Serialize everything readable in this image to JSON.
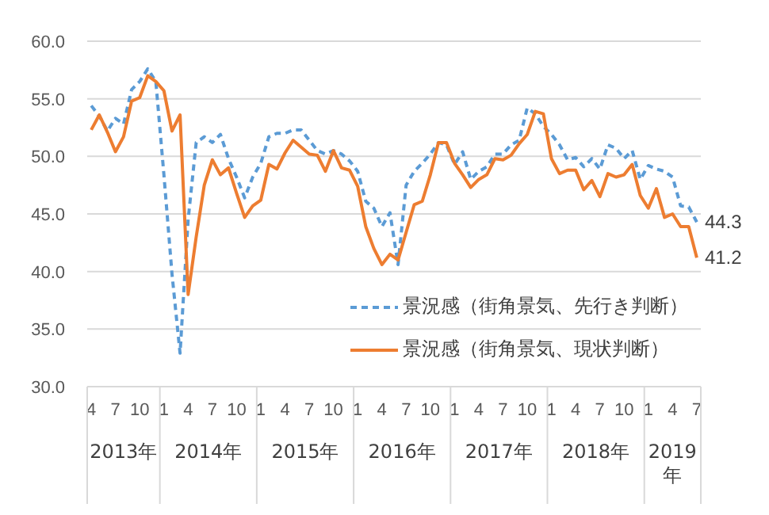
{
  "chart_data": {
    "type": "line",
    "x": [
      "2013-04",
      "2013-05",
      "2013-06",
      "2013-07",
      "2013-08",
      "2013-09",
      "2013-10",
      "2013-11",
      "2013-12",
      "2014-01",
      "2014-02",
      "2014-03",
      "2014-04",
      "2014-05",
      "2014-06",
      "2014-07",
      "2014-08",
      "2014-09",
      "2014-10",
      "2014-11",
      "2014-12",
      "2015-01",
      "2015-02",
      "2015-03",
      "2015-04",
      "2015-05",
      "2015-06",
      "2015-07",
      "2015-08",
      "2015-09",
      "2015-10",
      "2015-11",
      "2015-12",
      "2016-01",
      "2016-02",
      "2016-03",
      "2016-04",
      "2016-05",
      "2016-06",
      "2016-07",
      "2016-08",
      "2016-09",
      "2016-10",
      "2016-11",
      "2016-12",
      "2017-01",
      "2017-02",
      "2017-03",
      "2017-04",
      "2017-05",
      "2017-06",
      "2017-07",
      "2017-08",
      "2017-09",
      "2017-10",
      "2017-11",
      "2017-12",
      "2018-01",
      "2018-02",
      "2018-03",
      "2018-04",
      "2018-05",
      "2018-06",
      "2018-07",
      "2018-08",
      "2018-09",
      "2018-10",
      "2018-11",
      "2018-12",
      "2019-01",
      "2019-02",
      "2019-03",
      "2019-04",
      "2019-05",
      "2019-06",
      "2019-07"
    ],
    "series": [
      {
        "name": "景況感（街角景気、先行き判断）",
        "color": "#5b9bd5",
        "line_style": "dashed",
        "values": [
          54.4,
          53.5,
          52.2,
          53.3,
          52.8,
          55.8,
          56.5,
          57.6,
          56.5,
          48.4,
          39.8,
          32.9,
          44.5,
          51.2,
          51.7,
          51.2,
          51.9,
          49.8,
          48.2,
          46.4,
          48.2,
          49.4,
          51.7,
          52.0,
          52.0,
          52.3,
          52.3,
          51.4,
          50.5,
          50.2,
          50.5,
          50.2,
          49.6,
          48.7,
          46.1,
          45.5,
          43.9,
          45.1,
          40.6,
          47.5,
          48.7,
          49.4,
          50.2,
          51.2,
          51.0,
          49.3,
          50.4,
          48.0,
          48.7,
          49.1,
          50.2,
          50.2,
          51.0,
          51.4,
          54.2,
          53.7,
          52.6,
          51.9,
          51.0,
          49.7,
          49.9,
          49.1,
          49.8,
          48.9,
          51.0,
          50.7,
          49.8,
          50.5,
          48.0,
          49.2,
          48.9,
          48.7,
          48.2,
          45.7,
          45.6,
          44.3
        ],
        "value_labels": [
          null,
          null,
          null,
          null,
          null,
          null,
          null,
          null,
          null,
          null,
          null,
          null,
          null,
          null,
          null,
          null,
          null,
          null,
          null,
          null,
          null,
          null,
          null,
          null,
          null,
          null,
          null,
          null,
          null,
          null,
          null,
          null,
          null,
          null,
          null,
          null,
          null,
          null,
          null,
          null,
          null,
          null,
          null,
          null,
          null,
          null,
          null,
          null,
          null,
          null,
          null,
          null,
          null,
          null,
          null,
          null,
          null,
          null,
          null,
          null,
          null,
          null,
          null,
          null,
          null,
          null,
          null,
          null,
          null,
          null,
          null,
          null,
          null,
          null,
          null,
          "44.3"
        ]
      },
      {
        "name": "景況感（街角景気、現状判断）",
        "color": "#ed7d31",
        "line_style": "solid",
        "values": [
          52.3,
          53.6,
          52.1,
          50.4,
          51.7,
          54.8,
          55.1,
          57.0,
          56.5,
          55.7,
          52.2,
          53.6,
          38.0,
          43.0,
          47.5,
          49.7,
          48.4,
          49.0,
          46.8,
          44.7,
          45.7,
          46.2,
          49.3,
          48.9,
          50.3,
          51.4,
          50.8,
          50.2,
          50.1,
          48.7,
          50.5,
          49.0,
          48.8,
          47.4,
          43.9,
          42.0,
          40.6,
          41.5,
          41.0,
          43.4,
          45.8,
          46.1,
          48.4,
          51.2,
          51.2,
          49.4,
          48.4,
          47.3,
          48.0,
          48.4,
          49.8,
          49.7,
          50.1,
          51.1,
          51.9,
          53.9,
          53.7,
          49.8,
          48.5,
          48.8,
          48.8,
          47.1,
          47.9,
          46.5,
          48.5,
          48.2,
          48.4,
          49.3,
          46.6,
          45.5,
          47.2,
          44.7,
          45.0,
          43.9,
          43.9,
          41.2
        ],
        "value_labels": [
          null,
          null,
          null,
          null,
          null,
          null,
          null,
          null,
          null,
          null,
          null,
          null,
          null,
          null,
          null,
          null,
          null,
          null,
          null,
          null,
          null,
          null,
          null,
          null,
          null,
          null,
          null,
          null,
          null,
          null,
          null,
          null,
          null,
          null,
          null,
          null,
          null,
          null,
          null,
          null,
          null,
          null,
          null,
          null,
          null,
          null,
          null,
          null,
          null,
          null,
          null,
          null,
          null,
          null,
          null,
          null,
          null,
          null,
          null,
          null,
          null,
          null,
          null,
          null,
          null,
          null,
          null,
          null,
          null,
          null,
          null,
          null,
          null,
          null,
          null,
          "41.2"
        ]
      }
    ],
    "xlim": [
      "2013-03-16",
      "2019-07-16"
    ],
    "xticks": [
      {
        "value": "2013-04",
        "label": "4"
      },
      {
        "value": "2013-07",
        "label": "7"
      },
      {
        "value": "2013-10",
        "label": "10"
      },
      {
        "value": "2014-01",
        "label": "1"
      },
      {
        "value": "2014-04",
        "label": "4"
      },
      {
        "value": "2014-07",
        "label": "7"
      },
      {
        "value": "2014-10",
        "label": "10"
      },
      {
        "value": "2015-01",
        "label": "1"
      },
      {
        "value": "2015-04",
        "label": "4"
      },
      {
        "value": "2015-07",
        "label": "7"
      },
      {
        "value": "2015-10",
        "label": "10"
      },
      {
        "value": "2016-01",
        "label": "1"
      },
      {
        "value": "2016-04",
        "label": "4"
      },
      {
        "value": "2016-07",
        "label": "7"
      },
      {
        "value": "2016-10",
        "label": "10"
      },
      {
        "value": "2017-01",
        "label": "1"
      },
      {
        "value": "2017-04",
        "label": "4"
      },
      {
        "value": "2017-07",
        "label": "7"
      },
      {
        "value": "2017-10",
        "label": "10"
      },
      {
        "value": "2018-01",
        "label": "1"
      },
      {
        "value": "2018-04",
        "label": "4"
      },
      {
        "value": "2018-07",
        "label": "7"
      },
      {
        "value": "2018-10",
        "label": "10"
      },
      {
        "value": "2019-01",
        "label": "1"
      },
      {
        "value": "2019-04",
        "label": "4"
      },
      {
        "value": "2019-07",
        "label": "7"
      }
    ],
    "ylim": [
      30,
      60
    ],
    "yticks": [
      {
        "value": 30,
        "label": "30.0"
      },
      {
        "value": 35,
        "label": "35.0"
      },
      {
        "value": 40,
        "label": "40.0"
      },
      {
        "value": 45,
        "label": "45.0"
      },
      {
        "value": 50,
        "label": "50.0"
      },
      {
        "value": 55,
        "label": "55.0"
      },
      {
        "value": 60,
        "label": "60.0"
      }
    ],
    "annotations": [
      "2013年",
      "2014年",
      "2015年",
      "2016年",
      "2017年",
      "2018年",
      "2019年"
    ],
    "grid": "y",
    "legend": "bottom right"
  }
}
